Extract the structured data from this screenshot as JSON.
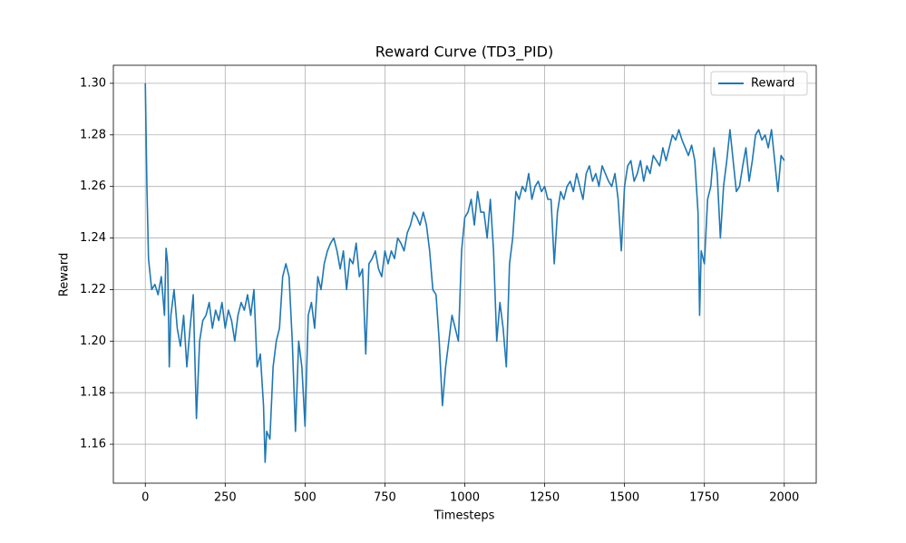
{
  "chart_data": {
    "type": "line",
    "title": "Reward Curve (TD3_PID)",
    "xlabel": "Timesteps",
    "ylabel": "Reward",
    "x": [
      0,
      5,
      10,
      20,
      30,
      40,
      50,
      60,
      65,
      70,
      75,
      80,
      90,
      100,
      110,
      120,
      130,
      140,
      150,
      160,
      170,
      180,
      190,
      200,
      210,
      220,
      230,
      240,
      250,
      260,
      270,
      280,
      290,
      300,
      310,
      320,
      330,
      340,
      350,
      360,
      370,
      375,
      380,
      390,
      400,
      410,
      420,
      430,
      440,
      450,
      460,
      470,
      480,
      490,
      500,
      510,
      520,
      530,
      540,
      550,
      560,
      570,
      580,
      590,
      600,
      610,
      620,
      630,
      640,
      650,
      660,
      670,
      680,
      690,
      700,
      710,
      720,
      730,
      740,
      750,
      760,
      770,
      780,
      790,
      800,
      810,
      820,
      830,
      840,
      850,
      860,
      870,
      880,
      890,
      900,
      910,
      920,
      930,
      940,
      950,
      960,
      970,
      980,
      990,
      1000,
      1010,
      1020,
      1030,
      1040,
      1050,
      1060,
      1070,
      1080,
      1090,
      1100,
      1110,
      1120,
      1130,
      1140,
      1150,
      1160,
      1170,
      1180,
      1190,
      1200,
      1210,
      1220,
      1230,
      1240,
      1250,
      1260,
      1270,
      1280,
      1290,
      1300,
      1310,
      1320,
      1330,
      1340,
      1350,
      1360,
      1370,
      1380,
      1390,
      1400,
      1410,
      1420,
      1430,
      1440,
      1450,
      1460,
      1470,
      1480,
      1490,
      1500,
      1510,
      1520,
      1530,
      1540,
      1550,
      1560,
      1570,
      1580,
      1590,
      1600,
      1610,
      1620,
      1630,
      1640,
      1650,
      1660,
      1670,
      1680,
      1690,
      1700,
      1710,
      1720,
      1730,
      1735,
      1740,
      1750,
      1760,
      1770,
      1780,
      1790,
      1800,
      1810,
      1820,
      1830,
      1840,
      1850,
      1860,
      1870,
      1880,
      1890,
      1900,
      1910,
      1920,
      1930,
      1940,
      1950,
      1960,
      1970,
      1980,
      1990,
      2000
    ],
    "series": [
      {
        "name": "Reward",
        "color": "#1f77b4",
        "values": [
          1.3,
          1.26,
          1.232,
          1.22,
          1.222,
          1.218,
          1.225,
          1.21,
          1.236,
          1.23,
          1.19,
          1.21,
          1.22,
          1.205,
          1.198,
          1.21,
          1.19,
          1.205,
          1.218,
          1.17,
          1.2,
          1.208,
          1.21,
          1.215,
          1.205,
          1.212,
          1.208,
          1.215,
          1.205,
          1.212,
          1.208,
          1.2,
          1.21,
          1.215,
          1.212,
          1.218,
          1.21,
          1.22,
          1.19,
          1.195,
          1.175,
          1.153,
          1.165,
          1.162,
          1.19,
          1.2,
          1.205,
          1.225,
          1.23,
          1.225,
          1.2,
          1.165,
          1.2,
          1.19,
          1.167,
          1.21,
          1.215,
          1.205,
          1.225,
          1.22,
          1.23,
          1.235,
          1.238,
          1.24,
          1.235,
          1.228,
          1.235,
          1.22,
          1.232,
          1.23,
          1.238,
          1.225,
          1.228,
          1.195,
          1.23,
          1.232,
          1.235,
          1.228,
          1.225,
          1.235,
          1.23,
          1.235,
          1.232,
          1.24,
          1.238,
          1.235,
          1.242,
          1.245,
          1.25,
          1.248,
          1.245,
          1.25,
          1.245,
          1.235,
          1.22,
          1.218,
          1.2,
          1.175,
          1.19,
          1.2,
          1.21,
          1.205,
          1.2,
          1.235,
          1.248,
          1.25,
          1.255,
          1.245,
          1.258,
          1.25,
          1.25,
          1.24,
          1.255,
          1.235,
          1.2,
          1.215,
          1.205,
          1.19,
          1.23,
          1.24,
          1.258,
          1.255,
          1.26,
          1.258,
          1.265,
          1.255,
          1.26,
          1.262,
          1.258,
          1.26,
          1.255,
          1.255,
          1.23,
          1.25,
          1.258,
          1.255,
          1.26,
          1.262,
          1.258,
          1.265,
          1.26,
          1.255,
          1.265,
          1.268,
          1.262,
          1.265,
          1.26,
          1.268,
          1.265,
          1.262,
          1.26,
          1.265,
          1.255,
          1.235,
          1.26,
          1.268,
          1.27,
          1.262,
          1.265,
          1.27,
          1.262,
          1.268,
          1.265,
          1.272,
          1.27,
          1.268,
          1.275,
          1.27,
          1.275,
          1.28,
          1.278,
          1.282,
          1.278,
          1.275,
          1.272,
          1.276,
          1.27,
          1.25,
          1.21,
          1.235,
          1.23,
          1.255,
          1.26,
          1.275,
          1.265,
          1.24,
          1.26,
          1.27,
          1.282,
          1.27,
          1.258,
          1.26,
          1.268,
          1.275,
          1.262,
          1.27,
          1.28,
          1.282,
          1.278,
          1.28,
          1.275,
          1.282,
          1.27,
          1.258,
          1.272,
          1.27
        ]
      }
    ],
    "xlim": [
      -100,
      2100
    ],
    "xticks": [
      0,
      250,
      500,
      750,
      1000,
      1250,
      1500,
      1750,
      2000
    ],
    "ylim": [
      1.1449,
      1.307
    ],
    "yticks": [
      1.16,
      1.18,
      {
        "value": 1.2,
        "label": "1.20"
      },
      1.22,
      1.24,
      1.26,
      1.28,
      {
        "value": 1.3,
        "label": "1.30"
      }
    ],
    "grid": true,
    "legend": "upper right"
  }
}
